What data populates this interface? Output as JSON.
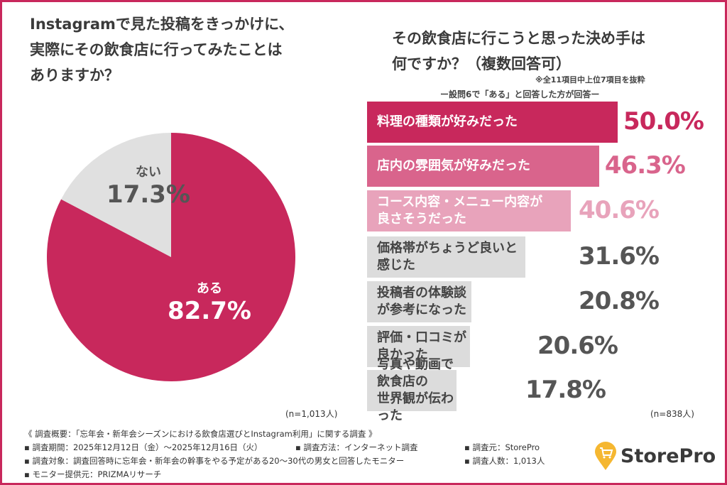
{
  "chart_data": [
    {
      "type": "pie",
      "title": "Instagramで見た投稿をきっかけに、\n実際にその飲食店に行ってみたことは\nありますか？",
      "slices": [
        {
          "label": "ある",
          "value": 82.7,
          "display": "82.7%",
          "color": "#c8285c"
        },
        {
          "label": "ない",
          "value": 17.3,
          "display": "17.3%",
          "color": "#e0e0e0"
        }
      ],
      "n": "(n=1,013人)"
    },
    {
      "type": "bar",
      "orientation": "horizontal",
      "title": "その飲食店に行こうと思った決め手は\n何ですか？（複数回答可）",
      "note1": "※全11項目中上位7項目を抜粋",
      "note2": "ー設問6で「ある」と回答した方が回答ー",
      "categories": [
        "料理の種類が好みだった",
        "店内の雰囲気が好みだった",
        "コース内容・メニュー内容が\n良さそうだった",
        "価格帯がちょうど良いと感じた",
        "投稿者の体験談が参考になった",
        "評価・口コミが良かった",
        "写真や動画で飲食店の\n世界観が伝わった"
      ],
      "values": [
        50.0,
        46.3,
        40.6,
        31.6,
        20.8,
        20.6,
        17.8
      ],
      "labels": [
        "50.0%",
        "46.3%",
        "40.6%",
        "31.6%",
        "20.8%",
        "20.6%",
        "17.8%"
      ],
      "bar_colors": [
        "#c8285c",
        "#d9648c",
        "#e8a3bb",
        "#dcdcdc",
        "#dcdcdc",
        "#dcdcdc",
        "#dcdcdc"
      ],
      "label_colors": [
        "#c8285c",
        "#d9648c",
        "#e8a3bb",
        "#555555",
        "#555555",
        "#555555",
        "#555555"
      ],
      "n": "(n=838人)"
    }
  ],
  "footer": {
    "overview": "《 調査概要：「忘年会・新年会シーズンにおける飲食店選びとInstagram利用」に関する調査 》",
    "period": "▪ 調査期間：2025年12月12日（金）〜2025年12月16日（火）",
    "method": "▪ 調査方法：インターネット調査",
    "source": "▪ 調査元：StorePro",
    "target": "▪ 調査対象：調査回答時に忘年会・新年会の幹事をやる予定がある20〜30代の男女と回答したモニター",
    "count": "▪ 調査人数：1,013人",
    "provider": "▪ モニター提供元：PRIZMAリサーチ"
  },
  "logo": {
    "text": "StorePro",
    "color": "#f5b731"
  },
  "accent": "#c8285c"
}
